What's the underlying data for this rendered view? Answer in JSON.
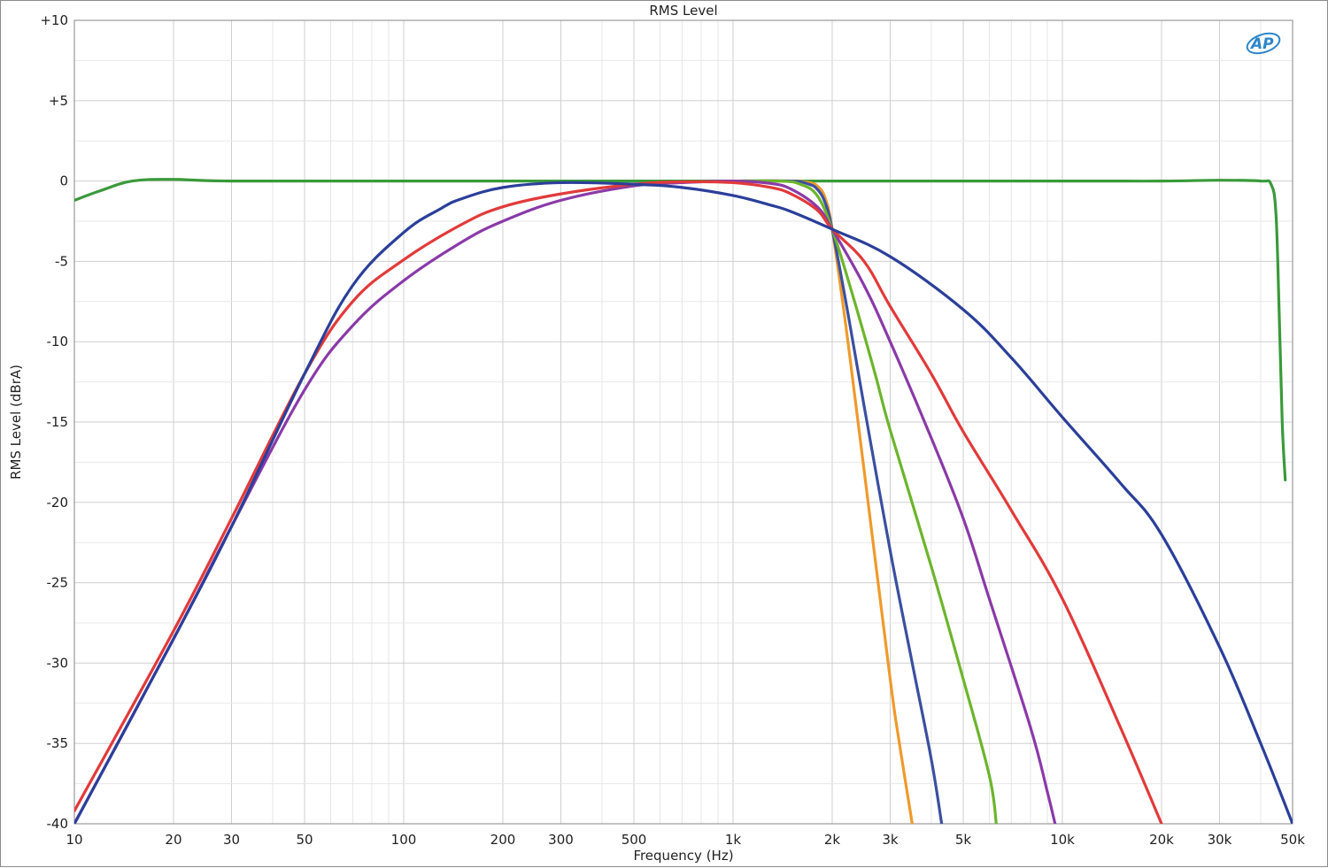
{
  "chart_data": {
    "type": "line",
    "title": "RMS Level",
    "xlabel": "Frequency (Hz)",
    "ylabel": "RMS Level (dBrA)",
    "x_scale": "log",
    "xlim": [
      10,
      50000
    ],
    "ylim": [
      -40,
      10
    ],
    "grid": true,
    "logo": "AP",
    "x_ticks": [
      {
        "value": 10,
        "label": "10"
      },
      {
        "value": 20,
        "label": "20"
      },
      {
        "value": 30,
        "label": "30"
      },
      {
        "value": 50,
        "label": "50"
      },
      {
        "value": 100,
        "label": "100"
      },
      {
        "value": 200,
        "label": "200"
      },
      {
        "value": 300,
        "label": "300"
      },
      {
        "value": 500,
        "label": "500"
      },
      {
        "value": 1000,
        "label": "1k"
      },
      {
        "value": 2000,
        "label": "2k"
      },
      {
        "value": 3000,
        "label": "3k"
      },
      {
        "value": 5000,
        "label": "5k"
      },
      {
        "value": 10000,
        "label": "10k"
      },
      {
        "value": 20000,
        "label": "20k"
      },
      {
        "value": 30000,
        "label": "30k"
      },
      {
        "value": 50000,
        "label": "50k"
      }
    ],
    "y_ticks": [
      {
        "value": 10,
        "label": "+10"
      },
      {
        "value": 5,
        "label": "+5"
      },
      {
        "value": 0,
        "label": "0"
      },
      {
        "value": -5,
        "label": "-5"
      },
      {
        "value": -10,
        "label": "-10"
      },
      {
        "value": -15,
        "label": "-15"
      },
      {
        "value": -20,
        "label": "-20"
      },
      {
        "value": -25,
        "label": "-25"
      },
      {
        "value": -30,
        "label": "-30"
      },
      {
        "value": -35,
        "label": "-35"
      },
      {
        "value": -40,
        "label": "-40"
      }
    ],
    "series": [
      {
        "color": "#3a9a3a",
        "points": [
          [
            10,
            -1.2
          ],
          [
            12,
            -0.6
          ],
          [
            15,
            0.0
          ],
          [
            20,
            0.1
          ],
          [
            30,
            0.0
          ],
          [
            100,
            0.0
          ],
          [
            1000,
            0.0
          ],
          [
            10000,
            0.0
          ],
          [
            20000,
            0.0
          ],
          [
            30000,
            0.05
          ],
          [
            40000,
            0.0
          ],
          [
            43000,
            -0.2
          ],
          [
            44500,
            -2
          ],
          [
            45500,
            -8
          ],
          [
            46500,
            -15
          ],
          [
            47500,
            -18.6
          ]
        ]
      },
      {
        "color": "#ef9a2c",
        "points": [
          [
            1000,
            0.0
          ],
          [
            1500,
            0.0
          ],
          [
            1700,
            -0.1
          ],
          [
            1800,
            -0.3
          ],
          [
            1900,
            -1.0
          ],
          [
            2000,
            -3.0
          ],
          [
            2200,
            -9
          ],
          [
            2500,
            -18
          ],
          [
            3000,
            -31
          ],
          [
            3200,
            -35
          ],
          [
            3500,
            -40
          ]
        ]
      },
      {
        "color": "#3a50a0",
        "points": [
          [
            1000,
            0.0
          ],
          [
            1500,
            0.0
          ],
          [
            1700,
            -0.2
          ],
          [
            1800,
            -0.5
          ],
          [
            1900,
            -1.3
          ],
          [
            2000,
            -3.0
          ],
          [
            2200,
            -7.5
          ],
          [
            2500,
            -14
          ],
          [
            3000,
            -23
          ],
          [
            3500,
            -30
          ],
          [
            4000,
            -36
          ],
          [
            4300,
            -40
          ]
        ]
      },
      {
        "color": "#6cb52c",
        "points": [
          [
            1000,
            0.0
          ],
          [
            1400,
            0.0
          ],
          [
            1600,
            -0.2
          ],
          [
            1800,
            -0.9
          ],
          [
            2000,
            -3.0
          ],
          [
            2300,
            -7
          ],
          [
            2700,
            -12
          ],
          [
            3000,
            -15.5
          ],
          [
            4000,
            -24
          ],
          [
            5000,
            -31
          ],
          [
            6000,
            -37
          ],
          [
            6300,
            -40
          ]
        ]
      },
      {
        "color": "#8a3aa8",
        "points": [
          [
            10,
            -40
          ],
          [
            20,
            -28.5
          ],
          [
            30,
            -21.5
          ],
          [
            50,
            -13
          ],
          [
            70,
            -9
          ],
          [
            100,
            -6.2
          ],
          [
            150,
            -3.8
          ],
          [
            200,
            -2.5
          ],
          [
            300,
            -1.2
          ],
          [
            500,
            -0.3
          ],
          [
            700,
            -0.1
          ],
          [
            1000,
            0.0
          ],
          [
            1300,
            -0.15
          ],
          [
            1500,
            -0.5
          ],
          [
            1800,
            -1.6
          ],
          [
            2000,
            -3.0
          ],
          [
            2500,
            -6.5
          ],
          [
            3000,
            -10
          ],
          [
            4000,
            -16
          ],
          [
            5000,
            -21
          ],
          [
            6000,
            -26
          ],
          [
            8000,
            -34
          ],
          [
            9000,
            -38
          ],
          [
            9500,
            -40
          ]
        ]
      },
      {
        "color": "#e23a3a",
        "points": [
          [
            10,
            -39.2
          ],
          [
            20,
            -28
          ],
          [
            30,
            -21
          ],
          [
            50,
            -12
          ],
          [
            70,
            -7.5
          ],
          [
            100,
            -4.9
          ],
          [
            150,
            -2.7
          ],
          [
            200,
            -1.6
          ],
          [
            300,
            -0.8
          ],
          [
            500,
            -0.2
          ],
          [
            700,
            -0.05
          ],
          [
            1000,
            -0.1
          ],
          [
            1300,
            -0.4
          ],
          [
            1500,
            -0.8
          ],
          [
            1800,
            -1.8
          ],
          [
            2000,
            -3.0
          ],
          [
            2500,
            -5
          ],
          [
            3000,
            -7.8
          ],
          [
            4000,
            -12
          ],
          [
            5000,
            -15.6
          ],
          [
            7000,
            -20.5
          ],
          [
            10000,
            -26
          ],
          [
            15000,
            -34
          ],
          [
            20000,
            -40
          ]
        ]
      },
      {
        "color": "#2b3f9a",
        "points": [
          [
            10,
            -40
          ],
          [
            20,
            -28.5
          ],
          [
            30,
            -21.5
          ],
          [
            50,
            -12
          ],
          [
            70,
            -6.5
          ],
          [
            100,
            -3.2
          ],
          [
            130,
            -1.7
          ],
          [
            150,
            -1.1
          ],
          [
            200,
            -0.4
          ],
          [
            300,
            -0.1
          ],
          [
            500,
            -0.2
          ],
          [
            700,
            -0.4
          ],
          [
            1000,
            -0.9
          ],
          [
            1300,
            -1.5
          ],
          [
            1500,
            -1.9
          ],
          [
            2000,
            -3.0
          ],
          [
            3000,
            -4.7
          ],
          [
            5000,
            -8
          ],
          [
            7000,
            -11
          ],
          [
            10000,
            -14.7
          ],
          [
            15000,
            -18.8
          ],
          [
            20000,
            -22
          ],
          [
            30000,
            -29
          ],
          [
            40000,
            -35
          ],
          [
            50000,
            -40
          ]
        ]
      }
    ]
  }
}
